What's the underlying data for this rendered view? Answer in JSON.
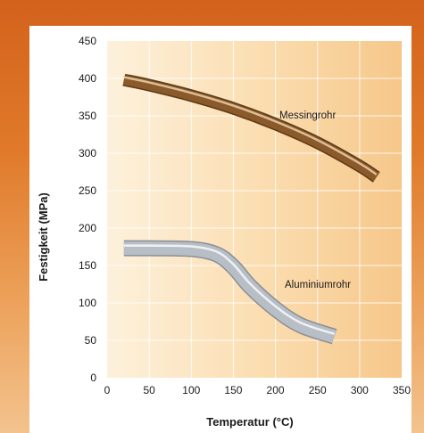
{
  "chart_data": {
    "type": "line",
    "xlabel": "Temperatur (°C)",
    "ylabel": "Festigkeit (MPa)",
    "xlim": [
      0,
      350
    ],
    "ylim": [
      0,
      450
    ],
    "x_ticks": [
      0,
      50,
      100,
      150,
      200,
      250,
      300,
      350
    ],
    "y_ticks": [
      0,
      50,
      100,
      150,
      200,
      250,
      300,
      350,
      400,
      450
    ],
    "grid": true,
    "series": [
      {
        "name": "Messingrohr",
        "color": "#8a5a2b",
        "x": [
          20,
          50,
          100,
          150,
          200,
          250,
          300,
          320
        ],
        "y": [
          398,
          391,
          377,
          360,
          339,
          314,
          283,
          268
        ]
      },
      {
        "name": "Aluminiumrohr",
        "color": "#b8bec6",
        "x": [
          20,
          50,
          100,
          130,
          150,
          170,
          200,
          230,
          270
        ],
        "y": [
          173,
          173,
          172,
          165,
          148,
          122,
          92,
          70,
          55
        ]
      }
    ]
  }
}
